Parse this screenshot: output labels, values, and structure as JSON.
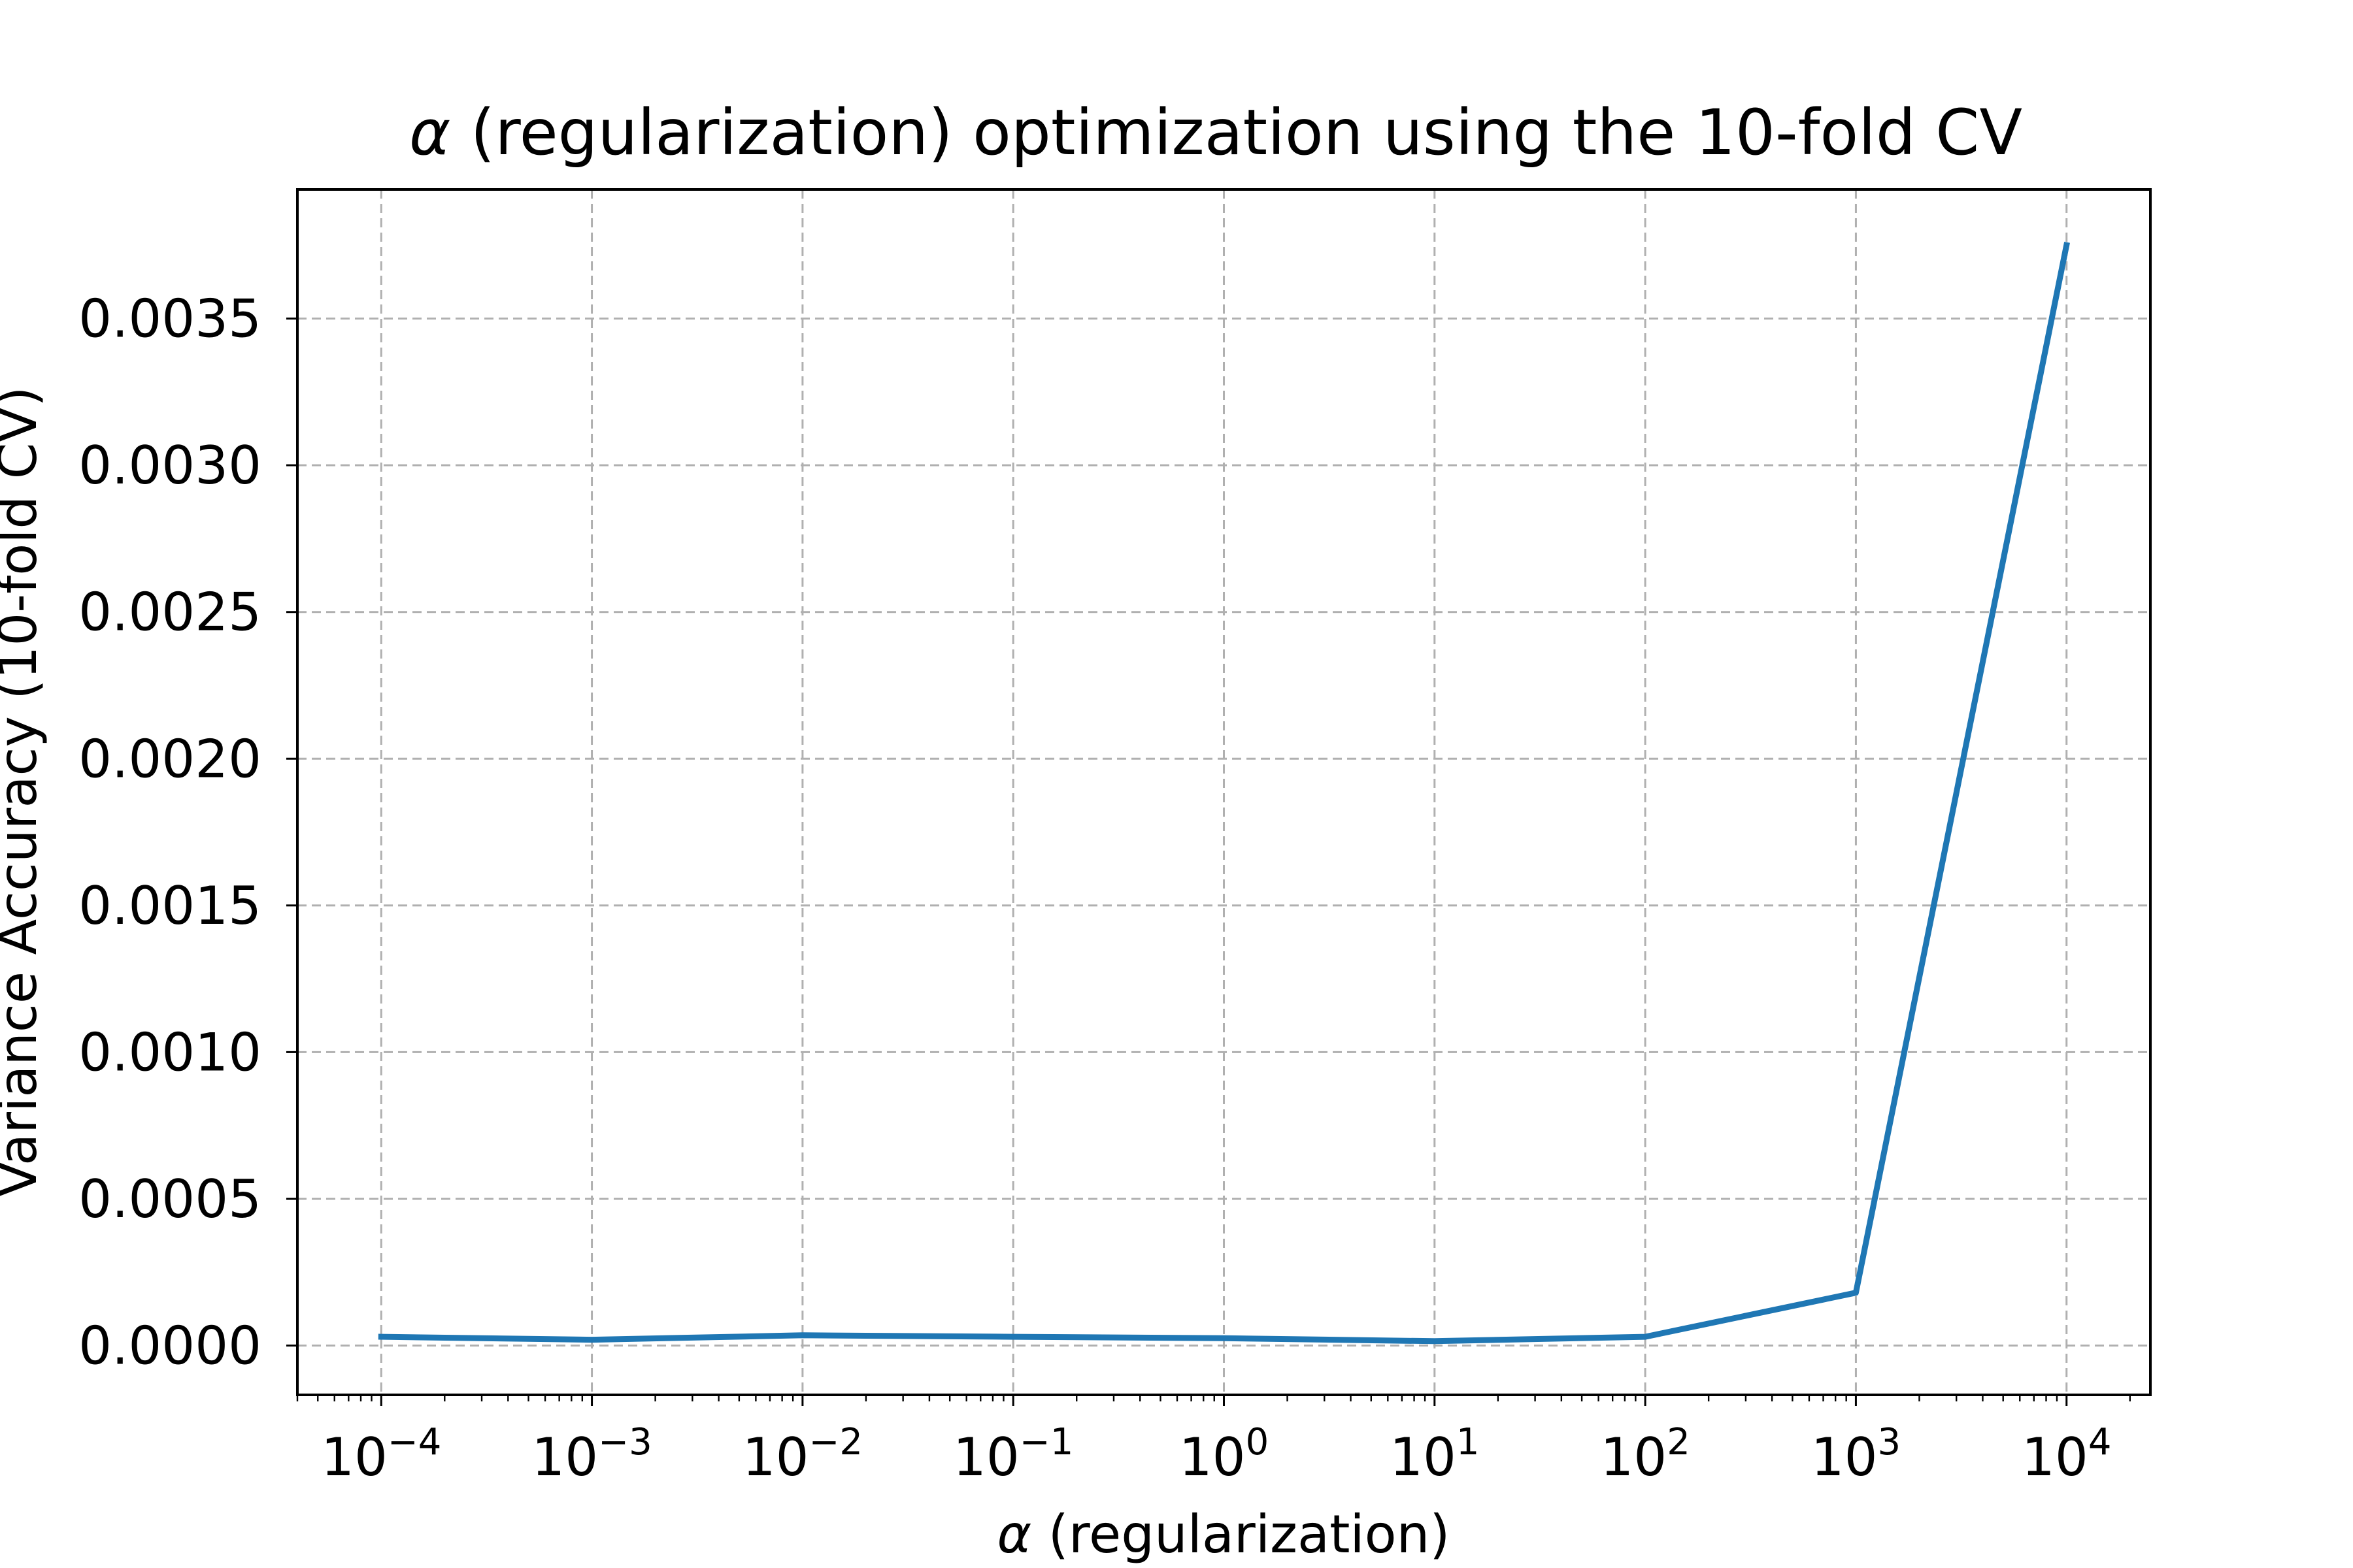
{
  "chart_data": {
    "type": "line",
    "title_symbol": "α",
    "title_rest": " (regularization) optimization using the 10-fold CV",
    "xlabel_symbol": "α",
    "xlabel_rest": " (regularization)",
    "ylabel": "Variance Accuracy (10-fold CV)",
    "x_scale": "log",
    "xlim": [
      4e-05,
      25000
    ],
    "ylim": [
      -0.000168,
      0.00394
    ],
    "x_ticks": [
      {
        "base": "10",
        "exp": "−4",
        "value": 0.0001
      },
      {
        "base": "10",
        "exp": "−3",
        "value": 0.001
      },
      {
        "base": "10",
        "exp": "−2",
        "value": 0.01
      },
      {
        "base": "10",
        "exp": "−1",
        "value": 0.1
      },
      {
        "base": "10",
        "exp": "0",
        "value": 1
      },
      {
        "base": "10",
        "exp": "1",
        "value": 10
      },
      {
        "base": "10",
        "exp": "2",
        "value": 100
      },
      {
        "base": "10",
        "exp": "3",
        "value": 1000
      },
      {
        "base": "10",
        "exp": "4",
        "value": 10000
      }
    ],
    "y_ticks": [
      {
        "label": "0.0000",
        "value": 0.0
      },
      {
        "label": "0.0005",
        "value": 0.0005
      },
      {
        "label": "0.0010",
        "value": 0.001
      },
      {
        "label": "0.0015",
        "value": 0.0015
      },
      {
        "label": "0.0020",
        "value": 0.002
      },
      {
        "label": "0.0025",
        "value": 0.0025
      },
      {
        "label": "0.0030",
        "value": 0.003
      },
      {
        "label": "0.0035",
        "value": 0.0035
      }
    ],
    "grid": true,
    "grid_style": "dashed",
    "series": [
      {
        "color": "#1f77b4",
        "x": [
          0.0001,
          0.001,
          0.01,
          0.1,
          1,
          10,
          100,
          1000,
          10000
        ],
        "y": [
          3e-05,
          2e-05,
          3.5e-05,
          3e-05,
          2.5e-05,
          1.5e-05,
          3e-05,
          0.00018,
          0.00375
        ]
      }
    ]
  }
}
